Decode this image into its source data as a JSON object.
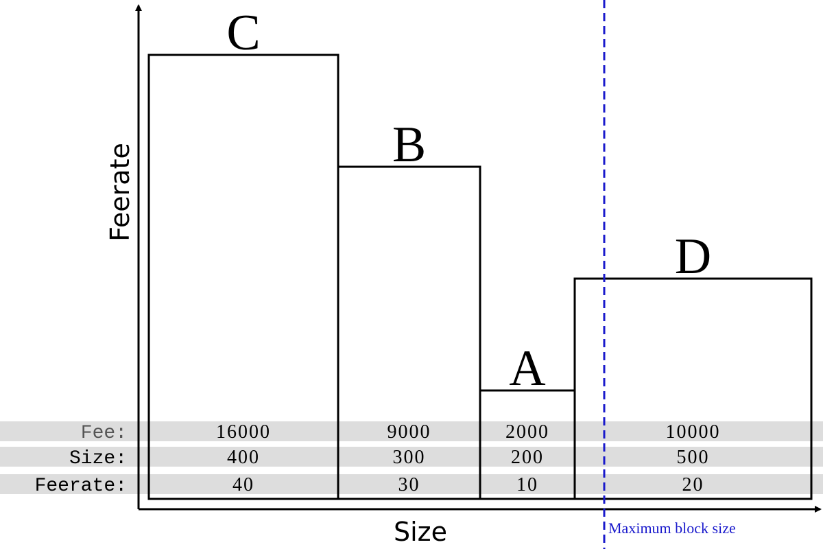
{
  "axes": {
    "x_label": "Size",
    "y_label": "Feerate"
  },
  "row_labels": {
    "fee": "Fee:",
    "size": "Size:",
    "feerate": "Feerate:"
  },
  "boxes": [
    {
      "label": "C",
      "fee": 16000,
      "size": 400,
      "feerate": 40
    },
    {
      "label": "B",
      "fee": 9000,
      "size": 300,
      "feerate": 30
    },
    {
      "label": "A",
      "fee": 2000,
      "size": 200,
      "feerate": 10
    },
    {
      "label": "D",
      "fee": 10000,
      "size": 500,
      "feerate": 20
    }
  ],
  "limit_label": "Maximum block size"
}
